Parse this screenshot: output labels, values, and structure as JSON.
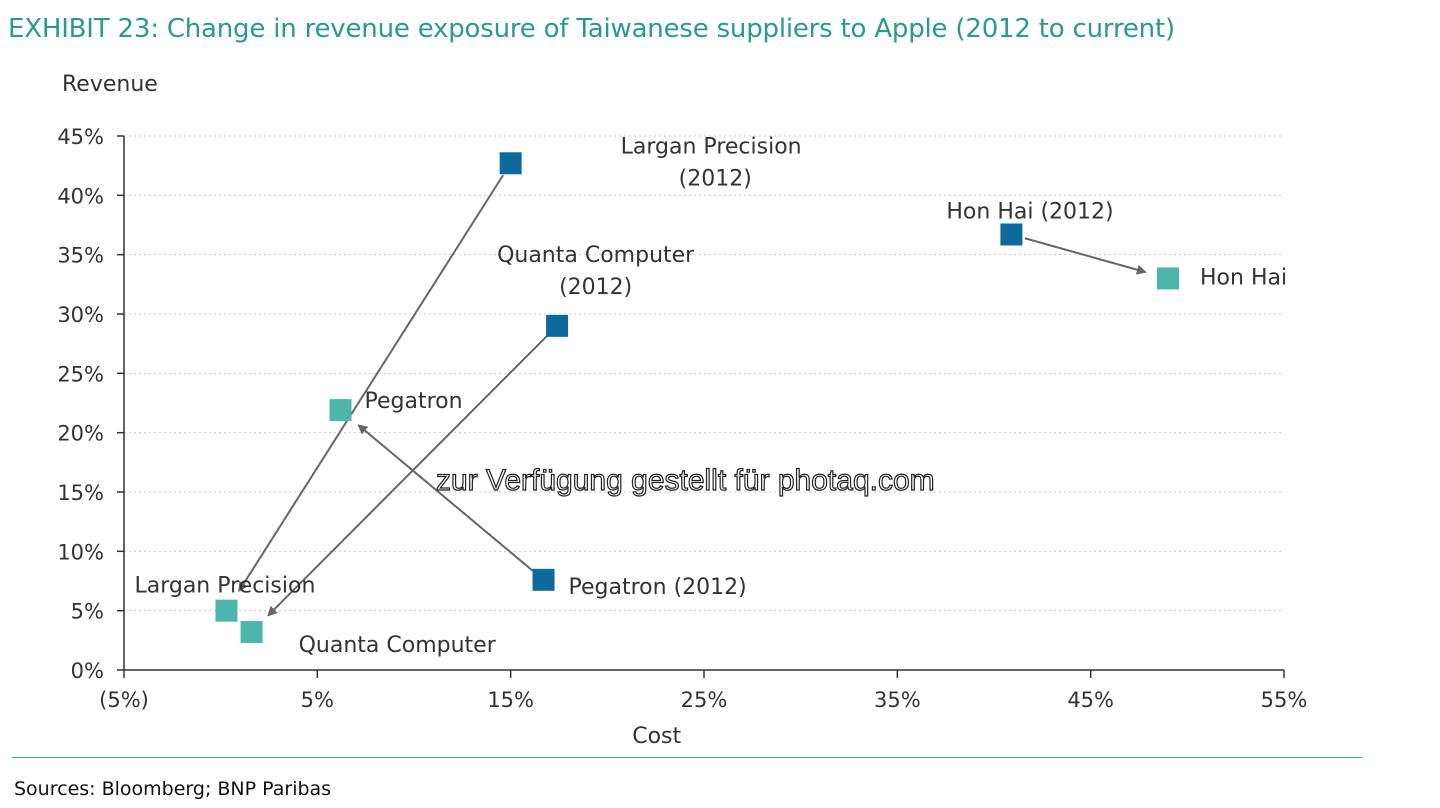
{
  "chart_data": {
    "type": "scatter",
    "title": "EXHIBIT 23:  Change in revenue exposure of Taiwanese suppliers to Apple (2012 to current)",
    "xlabel": "Cost",
    "ylabel": "Revenue",
    "xlim": [
      -5,
      55
    ],
    "ylim": [
      0,
      45
    ],
    "x_ticks": [
      "(5%)",
      "5%",
      "15%",
      "25%",
      "35%",
      "45%",
      "55%"
    ],
    "y_ticks": [
      "0%",
      "5%",
      "10%",
      "15%",
      "20%",
      "25%",
      "30%",
      "35%",
      "40%",
      "45%"
    ],
    "grid": "horizontal dotted",
    "series": [
      {
        "name": "2012",
        "color": "#0e6a9c",
        "points": [
          {
            "label_lines": [
              "Largan Precision",
              "(2012)"
            ],
            "x": 15.0,
            "y": 42.7
          },
          {
            "label_lines": [
              "Hon Hai (2012)"
            ],
            "x": 40.9,
            "y": 36.7
          },
          {
            "label_lines": [
              "Quanta Computer",
              "(2012)"
            ],
            "x": 17.4,
            "y": 29.0
          },
          {
            "label_lines": [
              "Pegatron (2012)"
            ],
            "x": 16.7,
            "y": 7.6
          }
        ]
      },
      {
        "name": "current",
        "color": "#4db6aa",
        "points": [
          {
            "label_lines": [
              "Hon Hai"
            ],
            "x": 49.0,
            "y": 33.0
          },
          {
            "label_lines": [
              "Pegatron"
            ],
            "x": 6.2,
            "y": 21.9
          },
          {
            "label_lines": [
              "Largan Precision"
            ],
            "x": 0.3,
            "y": 5.0
          },
          {
            "label_lines": [
              "Quanta Computer"
            ],
            "x": 1.6,
            "y": 3.2
          }
        ]
      }
    ],
    "arrows": [
      {
        "from": [
          15.0,
          42.7
        ],
        "to": [
          0.3,
          5.0
        ]
      },
      {
        "from": [
          17.4,
          29.0
        ],
        "to": [
          1.6,
          3.2
        ]
      },
      {
        "from": [
          16.7,
          7.6
        ],
        "to": [
          6.2,
          21.9
        ]
      },
      {
        "from": [
          40.9,
          36.7
        ],
        "to": [
          49.0,
          33.0
        ]
      }
    ]
  },
  "watermark": "zur Verfügung gestellt für photaq.com",
  "sources": "Sources: Bloomberg; BNP Paribas"
}
